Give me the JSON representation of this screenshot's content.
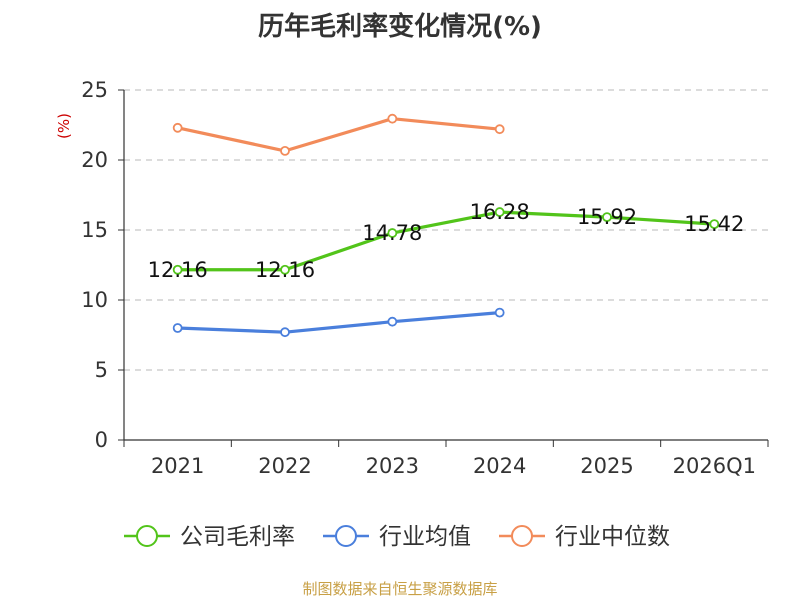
{
  "title": "历年毛利率变化情况(%)",
  "source": "制图数据来自恒生聚源数据库",
  "chart_data": {
    "type": "line",
    "title": "历年毛利率变化情况(%)",
    "ylabel": "(%)",
    "unit_color": "#cc0000",
    "ylim": [
      0,
      25
    ],
    "yticks": [
      "0",
      "5",
      "10",
      "15",
      "20",
      "25"
    ],
    "categories": [
      "2021",
      "2022",
      "2023",
      "2024",
      "2025",
      "2026Q1"
    ],
    "series": [
      {
        "name": "公司毛利率",
        "color": "#52c41a",
        "values": [
          12.16,
          12.16,
          14.78,
          16.28,
          15.92,
          15.42
        ],
        "labels": [
          "12.16",
          "12.16",
          "14.78",
          "16.28",
          "15.92",
          "15.42"
        ],
        "show_labels": true
      },
      {
        "name": "行业均值",
        "color": "#4a7fdc",
        "values": [
          8.0,
          7.7,
          8.45,
          9.1,
          null,
          null
        ],
        "show_labels": false
      },
      {
        "name": "行业中位数",
        "color": "#f28b5a",
        "values": [
          22.3,
          20.65,
          22.95,
          22.2,
          null,
          null
        ],
        "show_labels": false
      }
    ],
    "grid": true,
    "legend_position": "bottom"
  }
}
